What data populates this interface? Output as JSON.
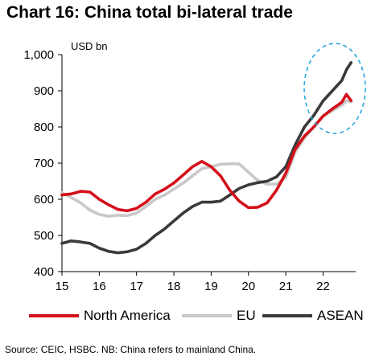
{
  "title": "Chart 16: China total bi-lateral trade",
  "source": "Source: CEIC, HSBC. NB: China refers to mainland China.",
  "chart_data": {
    "type": "line",
    "unit_label": "USD bn",
    "ylim": [
      400,
      1000
    ],
    "yticks": [
      400,
      500,
      600,
      700,
      800,
      900,
      1000
    ],
    "ytick_labels": [
      "400",
      "500",
      "600",
      "700",
      "800",
      "900",
      "1,000"
    ],
    "xlim": [
      2015,
      2022.875
    ],
    "xticks": [
      2015,
      2016,
      2017,
      2018,
      2019,
      2020,
      2021,
      2022
    ],
    "xtick_labels": [
      "15",
      "16",
      "17",
      "18",
      "19",
      "20",
      "21",
      "22"
    ],
    "grid": false,
    "legend": "bottom",
    "annotation": "dashed circle around the latest values of North America, EU and ASEAN",
    "series": [
      {
        "name": "North America",
        "color": "#d40f1a",
        "x": [
          2015.0,
          2015.25,
          2015.5,
          2015.75,
          2016.0,
          2016.25,
          2016.5,
          2016.75,
          2017.0,
          2017.25,
          2017.5,
          2017.75,
          2018.0,
          2018.25,
          2018.5,
          2018.75,
          2019.0,
          2019.25,
          2019.5,
          2019.75,
          2020.0,
          2020.25,
          2020.5,
          2020.75,
          2021.0,
          2021.25,
          2021.5,
          2021.75,
          2022.0,
          2022.25,
          2022.5,
          2022.625,
          2022.75
        ],
        "values": [
          612,
          615,
          622,
          620,
          600,
          585,
          572,
          568,
          575,
          592,
          615,
          628,
          645,
          667,
          690,
          705,
          690,
          665,
          625,
          595,
          577,
          578,
          590,
          625,
          672,
          738,
          775,
          800,
          830,
          850,
          868,
          890,
          873
        ]
      },
      {
        "name": "EU",
        "color": "#c8c8c8",
        "x": [
          2015.0,
          2015.25,
          2015.5,
          2015.75,
          2016.0,
          2016.25,
          2016.5,
          2016.75,
          2017.0,
          2017.25,
          2017.5,
          2017.75,
          2018.0,
          2018.25,
          2018.5,
          2018.75,
          2019.0,
          2019.25,
          2019.5,
          2019.75,
          2020.0,
          2020.25,
          2020.5,
          2020.75,
          2021.0,
          2021.25,
          2021.5,
          2021.75,
          2022.0,
          2022.25,
          2022.5,
          2022.625,
          2022.75
        ],
        "values": [
          618,
          605,
          590,
          570,
          558,
          553,
          556,
          555,
          562,
          580,
          600,
          612,
          628,
          645,
          665,
          685,
          690,
          697,
          698,
          698,
          675,
          652,
          642,
          642,
          660,
          730,
          770,
          800,
          830,
          845,
          860,
          872,
          870
        ]
      },
      {
        "name": "ASEAN",
        "color": "#3a3a3a",
        "x": [
          2015.0,
          2015.25,
          2015.5,
          2015.75,
          2016.0,
          2016.25,
          2016.5,
          2016.75,
          2017.0,
          2017.25,
          2017.5,
          2017.75,
          2018.0,
          2018.25,
          2018.5,
          2018.75,
          2019.0,
          2019.25,
          2019.5,
          2019.75,
          2020.0,
          2020.25,
          2020.5,
          2020.75,
          2021.0,
          2021.25,
          2021.5,
          2021.75,
          2022.0,
          2022.25,
          2022.5,
          2022.625,
          2022.75
        ],
        "values": [
          478,
          485,
          482,
          478,
          465,
          456,
          452,
          455,
          462,
          478,
          500,
          518,
          540,
          562,
          580,
          592,
          592,
          595,
          612,
          630,
          640,
          646,
          650,
          662,
          690,
          750,
          800,
          832,
          872,
          900,
          928,
          958,
          978
        ]
      }
    ]
  }
}
